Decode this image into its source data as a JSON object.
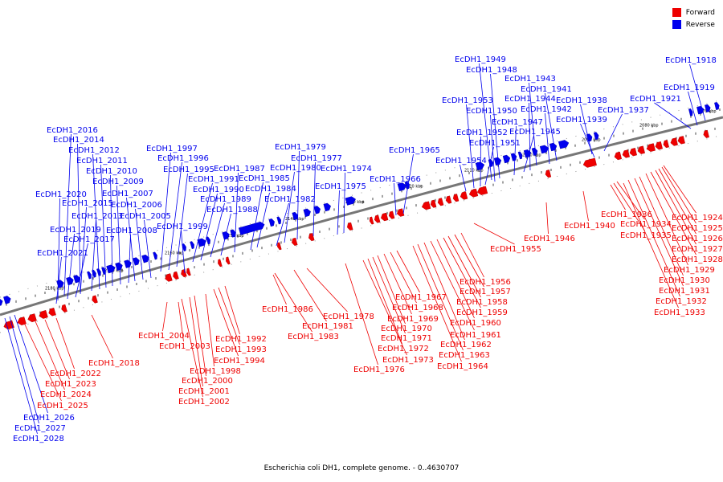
{
  "caption": "Escherichia coli DH1, complete genome. - 0..4630707",
  "legend": {
    "forward": {
      "label": "Forward",
      "color": "#ee0000"
    },
    "reverse": {
      "label": "Reverse",
      "color": "#0000ee"
    }
  },
  "colors": {
    "forward": "#ee0000",
    "reverse": "#0000ee",
    "backbone": "#777777"
  },
  "scale_ticks": [
    "2180 kbp",
    "2170 kbp",
    "2160 kbp",
    "2150 kbp",
    "2140 kbp",
    "2130 kbp",
    "2120 kbp",
    "2110 kbp",
    "2100 kbp",
    "2090 kbp",
    "2080 kbp",
    "2070 kbp"
  ],
  "reverse_labels": [
    "EcDH1_1918",
    "EcDH1_1919",
    "EcDH1_1921",
    "EcDH1_1937",
    "EcDH1_1938",
    "EcDH1_1939",
    "EcDH1_1941",
    "EcDH1_1942",
    "EcDH1_1943",
    "EcDH1_1944",
    "EcDH1_1945",
    "EcDH1_1947",
    "EcDH1_1948",
    "EcDH1_1949",
    "EcDH1_1950",
    "EcDH1_1951",
    "EcDH1_1952",
    "EcDH1_1953",
    "EcDH1_1954",
    "EcDH1_1965",
    "EcDH1_1966",
    "EcDH1_1974",
    "EcDH1_1975",
    "EcDH1_1977",
    "EcDH1_1979",
    "EcDH1_1980",
    "EcDH1_1982",
    "EcDH1_1984",
    "EcDH1_1985",
    "EcDH1_1987",
    "EcDH1_1988",
    "EcDH1_1989",
    "EcDH1_1990",
    "EcDH1_1991",
    "EcDH1_1995",
    "EcDH1_1996",
    "EcDH1_1997",
    "EcDH1_1999",
    "EcDH1_2005",
    "EcDH1_2006",
    "EcDH1_2007",
    "EcDH1_2008",
    "EcDH1_2009",
    "EcDH1_2010",
    "EcDH1_2011",
    "EcDH1_2012",
    "EcDH1_2013",
    "EcDH1_2014",
    "EcDH1_2015",
    "EcDH1_2016",
    "EcDH1_2017",
    "EcDH1_2019",
    "EcDH1_2020",
    "EcDH1_2021",
    "EcDH1_2026",
    "EcDH1_2027",
    "EcDH1_2028"
  ],
  "forward_labels": [
    "EcDH1_1924",
    "EcDH1_1925",
    "EcDH1_1926",
    "EcDH1_1927",
    "EcDH1_1928",
    "EcDH1_1929",
    "EcDH1_1930",
    "EcDH1_1931",
    "EcDH1_1932",
    "EcDH1_1933",
    "EcDH1_1934",
    "EcDH1_1935",
    "EcDH1_1936",
    "EcDH1_1940",
    "EcDH1_1946",
    "EcDH1_1955",
    "EcDH1_1956",
    "EcDH1_1957",
    "EcDH1_1958",
    "EcDH1_1959",
    "EcDH1_1960",
    "EcDH1_1961",
    "EcDH1_1962",
    "EcDH1_1963",
    "EcDH1_1964",
    "EcDH1_1967",
    "EcDH1_1968",
    "EcDH1_1969",
    "EcDH1_1970",
    "EcDH1_1971",
    "EcDH1_1972",
    "EcDH1_1973",
    "EcDH1_1976",
    "EcDH1_1978",
    "EcDH1_1981",
    "EcDH1_1983",
    "EcDH1_1986",
    "EcDH1_1992",
    "EcDH1_1993",
    "EcDH1_1994",
    "EcDH1_1998",
    "EcDH1_2000",
    "EcDH1_2001",
    "EcDH1_2002",
    "EcDH1_2003",
    "EcDH1_2004",
    "EcDH1_2018",
    "EcDH1_2022",
    "EcDH1_2023",
    "EcDH1_2024",
    "EcDH1_2025"
  ]
}
